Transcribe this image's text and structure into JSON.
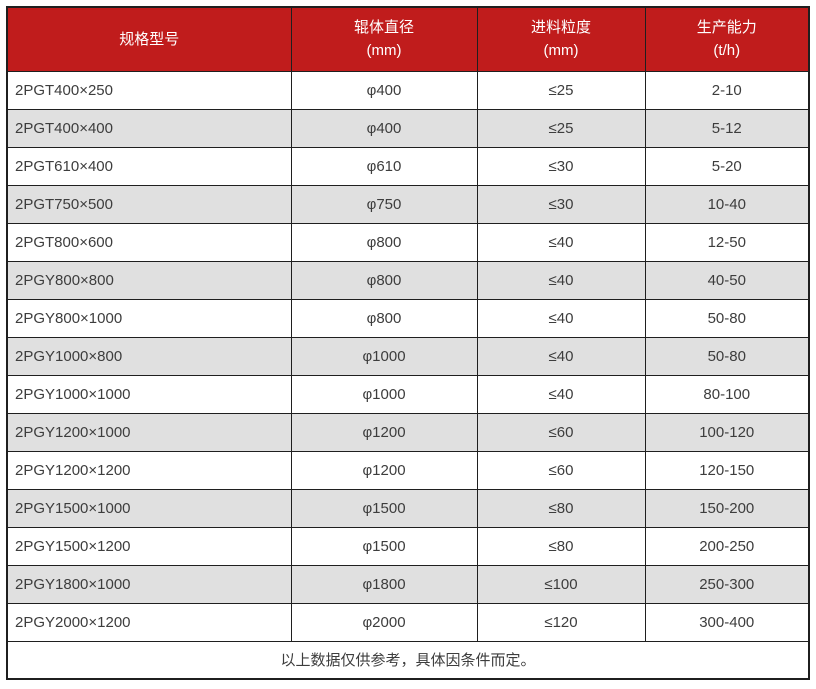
{
  "table": {
    "columns": [
      {
        "label": "规格型号",
        "unit": ""
      },
      {
        "label": "辊体直径",
        "unit": "(mm)"
      },
      {
        "label": "进料粒度",
        "unit": "(mm)"
      },
      {
        "label": "生产能力",
        "unit": "(t/h)"
      }
    ],
    "rows": [
      [
        "2PGT400×250",
        "φ400",
        "≤25",
        "2-10"
      ],
      [
        "2PGT400×400",
        "φ400",
        "≤25",
        "5-12"
      ],
      [
        "2PGT610×400",
        "φ610",
        "≤30",
        "5-20"
      ],
      [
        "2PGT750×500",
        "φ750",
        "≤30",
        "10-40"
      ],
      [
        "2PGT800×600",
        "φ800",
        "≤40",
        "12-50"
      ],
      [
        "2PGY800×800",
        "φ800",
        "≤40",
        "40-50"
      ],
      [
        "2PGY800×1000",
        "φ800",
        "≤40",
        "50-80"
      ],
      [
        "2PGY1000×800",
        "φ1000",
        "≤40",
        "50-80"
      ],
      [
        "2PGY1000×1000",
        "φ1000",
        "≤40",
        "80-100"
      ],
      [
        "2PGY1200×1000",
        "φ1200",
        "≤60",
        "100-120"
      ],
      [
        "2PGY1200×1200",
        "φ1200",
        "≤60",
        "120-150"
      ],
      [
        "2PGY1500×1000",
        "φ1500",
        "≤80",
        "150-200"
      ],
      [
        "2PGY1500×1200",
        "φ1500",
        "≤80",
        "200-250"
      ],
      [
        "2PGY1800×1000",
        "φ1800",
        "≤100",
        "250-300"
      ],
      [
        "2PGY2000×1200",
        "φ2000",
        "≤120",
        "300-400"
      ]
    ],
    "footer_note": "以上数据仅供参考，具体因条件而定。",
    "colors": {
      "header_bg": "#c01c1c",
      "header_text": "#ffffff",
      "row_alt_bg": "#e0e0e0",
      "border": "#1f1f1f",
      "body_text": "#3d3d3d"
    }
  },
  "chart_data": {
    "type": "table",
    "title": "",
    "columns": [
      "规格型号",
      "辊体直径 (mm)",
      "进料粒度 (mm)",
      "生产能力 (t/h)"
    ],
    "rows": [
      [
        "2PGT400×250",
        "φ400",
        "≤25",
        "2-10"
      ],
      [
        "2PGT400×400",
        "φ400",
        "≤25",
        "5-12"
      ],
      [
        "2PGT610×400",
        "φ610",
        "≤30",
        "5-20"
      ],
      [
        "2PGT750×500",
        "φ750",
        "≤30",
        "10-40"
      ],
      [
        "2PGT800×600",
        "φ800",
        "≤40",
        "12-50"
      ],
      [
        "2PGY800×800",
        "φ800",
        "≤40",
        "40-50"
      ],
      [
        "2PGY800×1000",
        "φ800",
        "≤40",
        "50-80"
      ],
      [
        "2PGY1000×800",
        "φ1000",
        "≤40",
        "50-80"
      ],
      [
        "2PGY1000×1000",
        "φ1000",
        "≤40",
        "80-100"
      ],
      [
        "2PGY1200×1000",
        "φ1200",
        "≤60",
        "100-120"
      ],
      [
        "2PGY1200×1200",
        "φ1200",
        "≤60",
        "120-150"
      ],
      [
        "2PGY1500×1000",
        "φ1500",
        "≤80",
        "150-200"
      ],
      [
        "2PGY1500×1200",
        "φ1500",
        "≤80",
        "200-250"
      ],
      [
        "2PGY1800×1000",
        "φ1800",
        "≤100",
        "250-300"
      ],
      [
        "2PGY2000×1200",
        "φ2000",
        "≤120",
        "300-400"
      ]
    ],
    "footnote": "以上数据仅供参考，具体因条件而定。",
    "layout": "header row red, body rows alternate white/light-gray, footer note spans all columns"
  }
}
